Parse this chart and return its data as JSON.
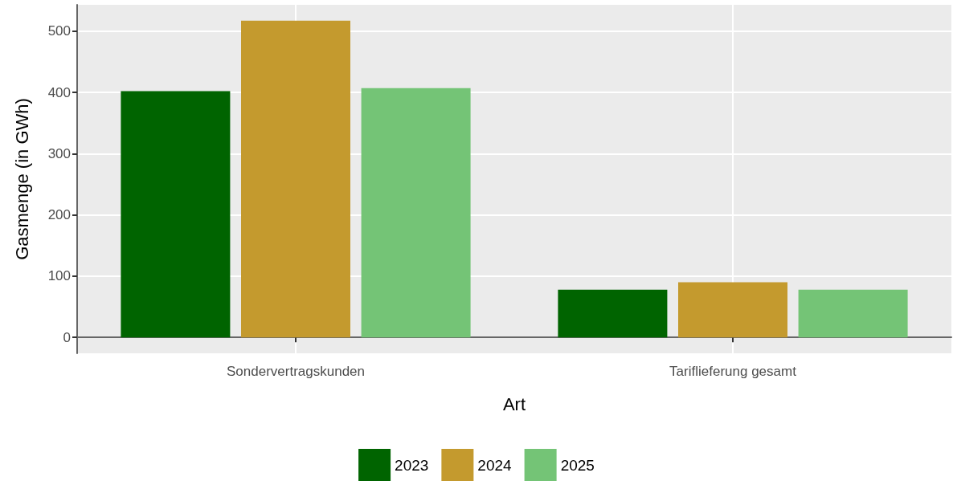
{
  "chart_data": {
    "type": "bar",
    "xlabel": "Art",
    "ylabel": "Gasmenge (in GWh)",
    "categories": [
      "Sondervertragskunden",
      "Tariflieferung gesamt"
    ],
    "series": [
      {
        "name": "2023",
        "color": "#006400",
        "values": [
          402,
          78
        ]
      },
      {
        "name": "2024",
        "color": "#c49a2e",
        "values": [
          517,
          90
        ]
      },
      {
        "name": "2025",
        "color": "#74c476",
        "values": [
          407,
          78
        ]
      }
    ],
    "ylim": [
      -26,
      543
    ],
    "yticks": [
      0,
      100,
      200,
      300,
      400,
      500
    ],
    "grid": true,
    "legend": "bottom"
  }
}
